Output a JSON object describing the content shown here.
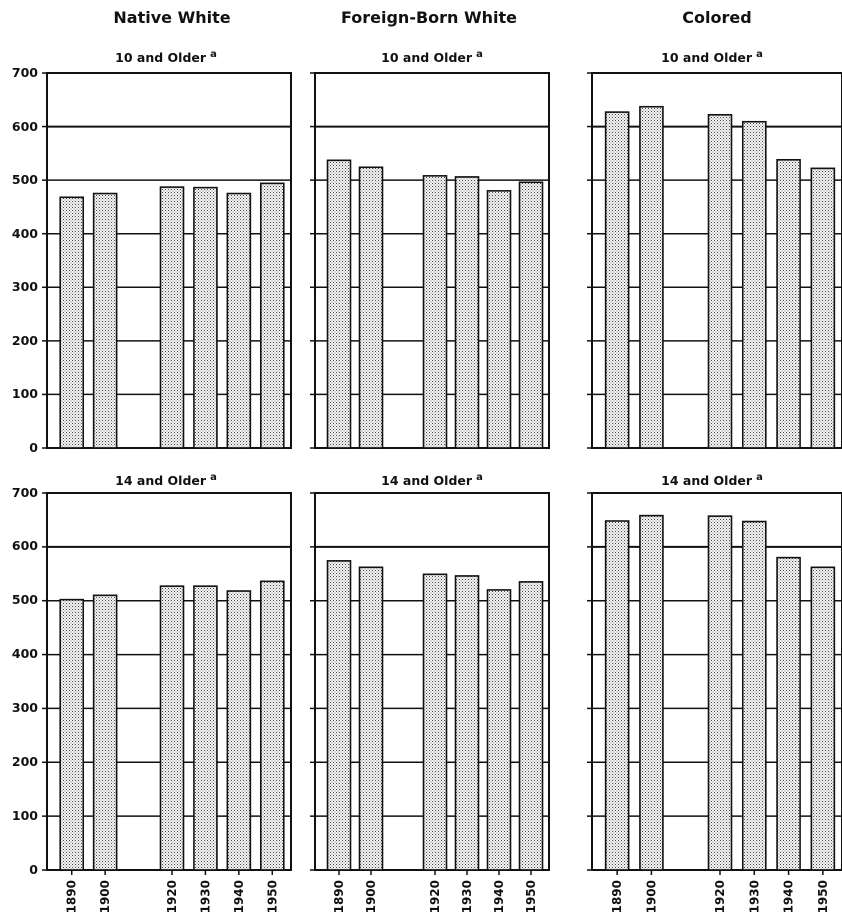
{
  "figure": {
    "columns": [
      "Native White",
      "Foreign-Born White",
      "Colored"
    ],
    "rows": [
      "10 and Older",
      "14 and Older"
    ],
    "footnote_mark": "a",
    "yticks": [
      "0",
      "100",
      "200",
      "300",
      "400",
      "500",
      "600",
      "700"
    ]
  },
  "chart_data": [
    {
      "type": "bar",
      "group": "Native White",
      "title": "10 and Older",
      "categories": [
        "1890",
        "1900",
        "1920",
        "1930",
        "1940",
        "1950"
      ],
      "values": [
        468,
        475,
        487,
        486,
        475,
        494
      ],
      "ylim": [
        0,
        700
      ]
    },
    {
      "type": "bar",
      "group": "Foreign-Born White",
      "title": "10 and Older",
      "categories": [
        "1890",
        "1900",
        "1920",
        "1930",
        "1940",
        "1950"
      ],
      "values": [
        537,
        524,
        508,
        506,
        480,
        496
      ],
      "ylim": [
        0,
        700
      ]
    },
    {
      "type": "bar",
      "group": "Colored",
      "title": "10 and Older",
      "categories": [
        "1890",
        "1900",
        "1920",
        "1930",
        "1940",
        "1950"
      ],
      "values": [
        627,
        637,
        622,
        609,
        538,
        522
      ],
      "ylim": [
        0,
        700
      ]
    },
    {
      "type": "bar",
      "group": "Native White",
      "title": "14 and Older",
      "categories": [
        "1890",
        "1900",
        "1920",
        "1930",
        "1940",
        "1950"
      ],
      "values": [
        502,
        510,
        527,
        527,
        518,
        536
      ],
      "ylim": [
        0,
        700
      ]
    },
    {
      "type": "bar",
      "group": "Foreign-Born White",
      "title": "14 and Older",
      "categories": [
        "1890",
        "1900",
        "1920",
        "1930",
        "1940",
        "1950"
      ],
      "values": [
        574,
        562,
        549,
        546,
        520,
        535
      ],
      "ylim": [
        0,
        700
      ]
    },
    {
      "type": "bar",
      "group": "Colored",
      "title": "14 and Older",
      "categories": [
        "1890",
        "1900",
        "1920",
        "1930",
        "1940",
        "1950"
      ],
      "values": [
        648,
        658,
        657,
        647,
        580,
        562
      ],
      "ylim": [
        0,
        700
      ]
    }
  ]
}
